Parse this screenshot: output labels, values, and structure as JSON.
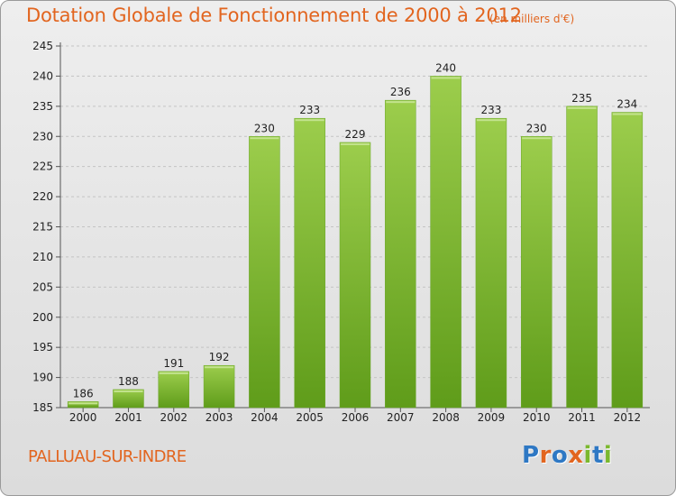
{
  "chart_data": {
    "type": "bar",
    "title": "Dotation Globale de Fonctionnement de 2000 à 2012",
    "subtitle": "(en milliers d'€)",
    "categories": [
      "2000",
      "2001",
      "2002",
      "2003",
      "2004",
      "2005",
      "2006",
      "2007",
      "2008",
      "2009",
      "2010",
      "2011",
      "2012"
    ],
    "values": [
      186,
      188,
      191,
      192,
      230,
      233,
      229,
      236,
      240,
      233,
      230,
      235,
      234
    ],
    "xlabel": "",
    "ylabel": "",
    "ylim": [
      185,
      245
    ],
    "yticks": [
      185,
      190,
      195,
      200,
      205,
      210,
      215,
      220,
      225,
      230,
      235,
      240,
      245
    ],
    "grid": "horizontal dashed",
    "bar_color": "#7ab82e"
  },
  "footer": {
    "commune": "PALLUAU-SUR-INDRE",
    "brand": {
      "letters": [
        "P",
        "r",
        "o",
        "x",
        "i",
        "t",
        "i"
      ],
      "colors": [
        "#2e78c4",
        "#e2651f",
        "#2e78c4",
        "#e2651f",
        "#7ab82e",
        "#2e78c4",
        "#7ab82e"
      ]
    }
  }
}
